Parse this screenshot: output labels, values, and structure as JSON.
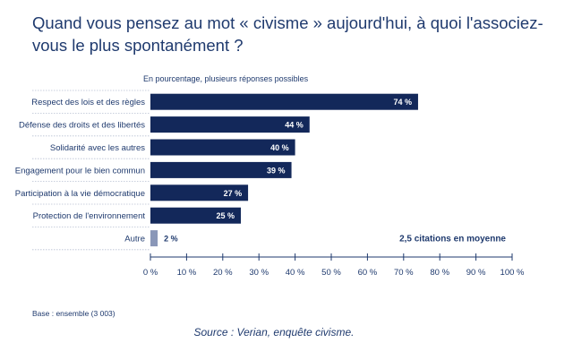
{
  "header": {
    "title": "Quand vous pensez au mot « civisme » aujourd'hui, à quoi l'associez-vous le plus spontanément ?",
    "subtitle": "En pourcentage, plusieurs réponses possibles"
  },
  "footer": {
    "base": "Base : ensemble (3 003)",
    "source": "Source : Verian, enquête civisme."
  },
  "colors": {
    "bar": "#13285a",
    "bar_small": "#8a97b8",
    "text": "#1f3a6e",
    "divider": "#b8c0d2"
  },
  "chart_data": {
    "type": "bar",
    "orientation": "horizontal",
    "categories": [
      "Respect des lois et des règles",
      "Défense des droits et des libertés",
      "Solidarité avec les autres",
      "Engagement pour le bien commun",
      "Participation à la vie démocratique",
      "Protection de l'environnement",
      "Autre"
    ],
    "values": [
      74,
      44,
      40,
      39,
      27,
      25,
      2
    ],
    "value_labels": [
      "74 %",
      "44 %",
      "40 %",
      "39 %",
      "27 %",
      "25 %",
      "2 %"
    ],
    "xlim": [
      0,
      100
    ],
    "ticks": [
      0,
      10,
      20,
      30,
      40,
      50,
      60,
      70,
      80,
      90,
      100
    ],
    "tick_labels": [
      "0 %",
      "10 %",
      "20 %",
      "30 %",
      "40 %",
      "50 %",
      "60 %",
      "70 %",
      "80 %",
      "90 %",
      "100 %"
    ],
    "annotation": "2,5 citations en moyenne",
    "grid": false
  }
}
